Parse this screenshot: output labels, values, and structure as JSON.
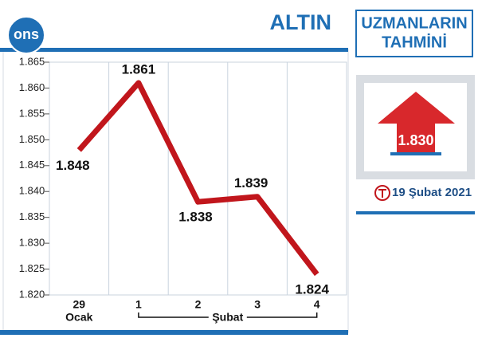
{
  "chart_data": {
    "type": "line",
    "title": "ALTIN",
    "badge": "ons",
    "categories": [
      "29",
      "1",
      "2",
      "3",
      "4"
    ],
    "groups": [
      {
        "label": "Ocak",
        "from": 0,
        "to": 0
      },
      {
        "label": "Şubat",
        "from": 1,
        "to": 4
      }
    ],
    "values": [
      1848,
      1861,
      1838,
      1839,
      1824
    ],
    "value_labels": [
      "1.848",
      "1.861",
      "1.838",
      "1.839",
      "1.824"
    ],
    "color": "#c1161c",
    "ylim": [
      1820,
      1865
    ],
    "yticks": [
      {
        "value": 1820,
        "label": "1.820"
      },
      {
        "value": 1825,
        "label": "1.825"
      },
      {
        "value": 1830,
        "label": "1.830"
      },
      {
        "value": 1835,
        "label": "1.835"
      },
      {
        "value": 1840,
        "label": "1.840"
      },
      {
        "value": 1845,
        "label": "1.845"
      },
      {
        "value": 1850,
        "label": "1.850"
      },
      {
        "value": 1855,
        "label": "1.855"
      },
      {
        "value": 1860,
        "label": "1.860"
      },
      {
        "value": 1865,
        "label": "1.865"
      }
    ]
  },
  "forecast": {
    "title": [
      "UZMANLARIN",
      "TAHMİNİ"
    ],
    "value": "1.830",
    "date": "19 Şubat 2021"
  }
}
